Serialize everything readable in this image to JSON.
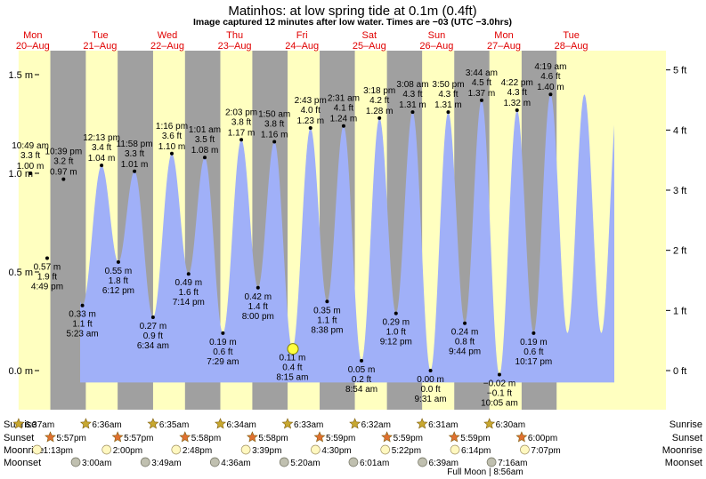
{
  "chart_data": {
    "type": "area",
    "title": "Matinhos: at low  spring tide at 0.1m (0.4ft)",
    "subtitle": "Image captured 12 minutes after low water. Times are −03 (UTC −3.0hrs)",
    "ylim_m": [
      -0.06,
      1.6
    ],
    "ylim_ft": [
      -0.2,
      5.25
    ],
    "yticks_left": [
      "1.5 m",
      "1.0 m",
      "0.5 m",
      "0.0 m"
    ],
    "ytick_values_left": [
      1.5,
      1.0,
      0.5,
      0.0
    ],
    "yticks_right": [
      "5 ft",
      "4 ft",
      "3 ft",
      "2 ft",
      "1 ft",
      "0 ft"
    ],
    "ytick_values_right": [
      5,
      4,
      3,
      2,
      1,
      0
    ],
    "days": [
      {
        "dow": "Mon",
        "date": "20–Aug"
      },
      {
        "dow": "Tue",
        "date": "21–Aug"
      },
      {
        "dow": "Wed",
        "date": "22–Aug"
      },
      {
        "dow": "Thu",
        "date": "23–Aug"
      },
      {
        "dow": "Fri",
        "date": "24–Aug"
      },
      {
        "dow": "Sat",
        "date": "25–Aug"
      },
      {
        "dow": "Sun",
        "date": "26–Aug"
      },
      {
        "dow": "Mon",
        "date": "27–Aug"
      },
      {
        "dow": "Tue",
        "date": "28–Aug"
      }
    ],
    "tides": [
      {
        "day": 0,
        "time": "10:49 am",
        "m": 1.0,
        "ft": "3.3 ft",
        "m_label": "1.00 m",
        "type": "high"
      },
      {
        "day": 0,
        "time": "4:49 pm",
        "m": 0.57,
        "ft": "1.9 ft",
        "m_label": "0.57 m",
        "type": "low"
      },
      {
        "day": 0,
        "time": "10:39 pm",
        "m": 0.97,
        "ft": "3.2 ft",
        "m_label": "0.97 m",
        "type": "high"
      },
      {
        "day": 1,
        "time": "5:23 am",
        "m": 0.33,
        "ft": "1.1 ft",
        "m_label": "0.33 m",
        "type": "low"
      },
      {
        "day": 1,
        "time": "12:13 pm",
        "m": 1.04,
        "ft": "3.4 ft",
        "m_label": "1.04 m",
        "type": "high"
      },
      {
        "day": 1,
        "time": "6:12 pm",
        "m": 0.55,
        "ft": "1.8 ft",
        "m_label": "0.55 m",
        "type": "low"
      },
      {
        "day": 1,
        "time": "11:58 pm",
        "m": 1.01,
        "ft": "3.3 ft",
        "m_label": "1.01 m",
        "type": "high"
      },
      {
        "day": 2,
        "time": "6:34 am",
        "m": 0.27,
        "ft": "0.9 ft",
        "m_label": "0.27 m",
        "type": "low"
      },
      {
        "day": 2,
        "time": "1:16 pm",
        "m": 1.1,
        "ft": "3.6 ft",
        "m_label": "1.10 m",
        "type": "high"
      },
      {
        "day": 2,
        "time": "7:14 pm",
        "m": 0.49,
        "ft": "1.6 ft",
        "m_label": "0.49 m",
        "type": "low"
      },
      {
        "day": 3,
        "time": "1:01 am",
        "m": 1.08,
        "ft": "3.5 ft",
        "m_label": "1.08 m",
        "type": "high"
      },
      {
        "day": 3,
        "time": "7:29 am",
        "m": 0.19,
        "ft": "0.6 ft",
        "m_label": "0.19 m",
        "type": "low"
      },
      {
        "day": 3,
        "time": "2:03 pm",
        "m": 1.17,
        "ft": "3.8 ft",
        "m_label": "1.17 m",
        "type": "high"
      },
      {
        "day": 3,
        "time": "8:00 pm",
        "m": 0.42,
        "ft": "1.4 ft",
        "m_label": "0.42 m",
        "type": "low"
      },
      {
        "day": 4,
        "time": "1:50 am",
        "m": 1.16,
        "ft": "3.8 ft",
        "m_label": "1.16 m",
        "type": "high"
      },
      {
        "day": 4,
        "time": "8:15 am",
        "m": 0.11,
        "ft": "0.4 ft",
        "m_label": "0.11 m",
        "type": "low"
      },
      {
        "day": 4,
        "time": "2:43 pm",
        "m": 1.23,
        "ft": "4.0 ft",
        "m_label": "1.23 m",
        "type": "high"
      },
      {
        "day": 4,
        "time": "8:38 pm",
        "m": 0.35,
        "ft": "1.1 ft",
        "m_label": "0.35 m",
        "type": "low"
      },
      {
        "day": 5,
        "time": "2:31 am",
        "m": 1.24,
        "ft": "4.1 ft",
        "m_label": "1.24 m",
        "type": "high"
      },
      {
        "day": 5,
        "time": "8:54 am",
        "m": 0.05,
        "ft": "0.2 ft",
        "m_label": "0.05 m",
        "type": "low"
      },
      {
        "day": 5,
        "time": "3:18 pm",
        "m": 1.28,
        "ft": "4.2 ft",
        "m_label": "1.28 m",
        "type": "high"
      },
      {
        "day": 5,
        "time": "9:12 pm",
        "m": 0.29,
        "ft": "1.0 ft",
        "m_label": "0.29 m",
        "type": "low"
      },
      {
        "day": 6,
        "time": "3:08 am",
        "m": 1.31,
        "ft": "4.3 ft",
        "m_label": "1.31 m",
        "type": "high"
      },
      {
        "day": 6,
        "time": "9:31 am",
        "m": 0.0,
        "ft": "0.0 ft",
        "m_label": "0.00 m",
        "type": "low"
      },
      {
        "day": 6,
        "time": "3:50 pm",
        "m": 1.31,
        "ft": "4.3 ft",
        "m_label": "1.31 m",
        "type": "high"
      },
      {
        "day": 6,
        "time": "9:44 pm",
        "m": 0.24,
        "ft": "0.8 ft",
        "m_label": "0.24 m",
        "type": "low"
      },
      {
        "day": 7,
        "time": "3:44 am",
        "m": 1.37,
        "ft": "4.5 ft",
        "m_label": "1.37 m",
        "type": "high"
      },
      {
        "day": 7,
        "time": "10:05 am",
        "m": -0.02,
        "ft": "−0.1 ft",
        "m_label": "−0.02 m",
        "type": "low"
      },
      {
        "day": 7,
        "time": "4:22 pm",
        "m": 1.32,
        "ft": "4.3 ft",
        "m_label": "1.32 m",
        "type": "high"
      },
      {
        "day": 7,
        "time": "10:17 pm",
        "m": 0.19,
        "ft": "0.6 ft",
        "m_label": "0.19 m",
        "type": "low"
      },
      {
        "day": 8,
        "time": "4:19 am",
        "m": 1.4,
        "ft": "4.6 ft",
        "m_label": "1.40 m",
        "type": "high"
      }
    ],
    "current": {
      "day": 4,
      "time": "8:27 am",
      "m": 0.11
    },
    "sun": {
      "sunrise": [
        "6:37am",
        "6:36am",
        "6:35am",
        "6:34am",
        "6:33am",
        "6:32am",
        "6:31am",
        "6:30am"
      ],
      "sunset": [
        "5:57pm",
        "5:57pm",
        "5:58pm",
        "5:58pm",
        "5:59pm",
        "5:59pm",
        "5:59pm",
        "6:00pm"
      ],
      "sunrise_hours": [
        6.62,
        6.6,
        6.58,
        6.57,
        6.55,
        6.53,
        6.52,
        6.5
      ],
      "sunset_hours": [
        17.95,
        17.95,
        17.97,
        17.97,
        17.98,
        17.98,
        17.98,
        18.0
      ]
    },
    "moon": {
      "moonrise": [
        {
          "day": 0,
          "time": "1:13pm"
        },
        {
          "day": 1,
          "time": "2:00pm"
        },
        {
          "day": 2,
          "time": "2:48pm"
        },
        {
          "day": 3,
          "time": "3:39pm"
        },
        {
          "day": 4,
          "time": "4:30pm"
        },
        {
          "day": 5,
          "time": "5:22pm"
        },
        {
          "day": 6,
          "time": "6:14pm"
        },
        {
          "day": 7,
          "time": "7:07pm"
        }
      ],
      "moonset": [
        {
          "day": 1,
          "time": "3:00am"
        },
        {
          "day": 2,
          "time": "3:49am"
        },
        {
          "day": 3,
          "time": "4:36am"
        },
        {
          "day": 4,
          "time": "5:20am"
        },
        {
          "day": 5,
          "time": "6:01am"
        },
        {
          "day": 6,
          "time": "6:39am"
        },
        {
          "day": 7,
          "time": "7:16am"
        }
      ],
      "phase_note": "Full Moon | 8:56am"
    },
    "row_labels": {
      "sunrise": "Sunrise",
      "sunset": "Sunset",
      "moonrise": "Moonrise",
      "moonset": "Moonset"
    },
    "colors": {
      "night": "#a0a0a0",
      "day": "#ffffc0",
      "water": "#a0b0f8",
      "day_label": "#e00000",
      "sun_star": "#c8a830",
      "sunset_star": "#e07030",
      "moonrise": "#fff8c0",
      "moonset": "#c0c0b0"
    }
  }
}
